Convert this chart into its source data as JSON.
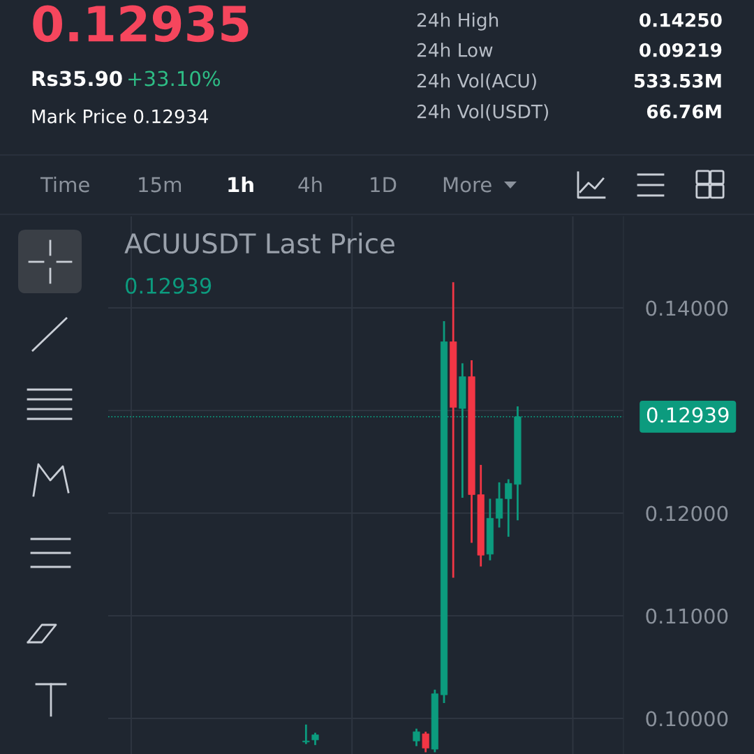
{
  "chart_data": {
    "type": "candlestick",
    "title": "ACUUSDT Last Price",
    "categories": [
      null,
      null,
      null,
      null,
      null,
      null,
      null,
      null,
      null,
      null,
      null,
      null,
      null,
      null,
      null,
      null,
      null,
      null,
      null,
      null,
      null,
      null,
      null,
      null,
      null,
      null,
      null,
      null,
      null,
      null,
      null,
      null,
      null,
      null,
      null,
      null,
      null,
      null,
      null,
      null,
      null,
      null,
      null,
      null,
      null,
      null,
      null,
      null,
      null,
      null,
      null,
      null,
      null,
      null,
      null,
      null
    ],
    "ohlc": [
      null,
      null,
      null,
      null,
      null,
      null,
      null,
      null,
      null,
      null,
      null,
      null,
      null,
      null,
      null,
      null,
      null,
      null,
      null,
      null,
      null,
      [
        0.0977,
        0.0994,
        0.0975,
        0.0978
      ],
      [
        0.0979,
        0.0986,
        0.0974,
        0.0984
      ],
      null,
      null,
      null,
      null,
      null,
      null,
      null,
      null,
      null,
      null,
      [
        0.0978,
        0.099,
        0.0973,
        0.0987
      ],
      [
        0.0985,
        0.0987,
        0.0967,
        0.0971
      ],
      [
        0.097,
        0.1028,
        0.0967,
        0.1024
      ],
      [
        0.1023,
        0.1387,
        0.1015,
        0.1367
      ],
      [
        0.1367,
        0.1425,
        0.1137,
        0.1303
      ],
      [
        0.1302,
        0.1346,
        0.1215,
        0.1333
      ],
      [
        0.1333,
        0.1349,
        0.1171,
        0.1218
      ],
      [
        0.1218,
        0.1247,
        0.1148,
        0.1159
      ],
      [
        0.116,
        0.1214,
        0.1154,
        0.1195
      ],
      [
        0.1195,
        0.123,
        0.1186,
        0.1214
      ],
      [
        0.1214,
        0.1233,
        0.1177,
        0.1229
      ],
      [
        0.1228,
        0.1304,
        0.1193,
        0.12939
      ],
      null,
      null,
      null,
      null,
      null,
      null,
      null,
      null,
      null,
      null,
      null
    ],
    "colors": [
      null,
      null,
      null,
      null,
      null,
      null,
      null,
      null,
      null,
      null,
      null,
      null,
      null,
      null,
      null,
      null,
      null,
      null,
      null,
      null,
      null,
      "#0c9b7e",
      "#0c9b7e",
      null,
      null,
      null,
      null,
      null,
      null,
      null,
      null,
      null,
      null,
      "#0c9b7e",
      "#f23645",
      "#0c9b7e",
      "#0c9b7e",
      "#f23645",
      "#0c9b7e",
      "#f23645",
      "#f23645",
      "#0c9b7e",
      "#0c9b7e",
      "#0c9b7e",
      "#0c9b7e",
      null,
      null,
      null,
      null,
      null,
      null,
      null,
      null,
      null,
      null,
      null
    ],
    "ylim": [
      0.09653,
      0.14891
    ],
    "yticks": [
      {
        "value": 0.1,
        "label": "0.10000"
      },
      {
        "value": 0.11,
        "label": "0.11000"
      },
      {
        "value": 0.12,
        "label": "0.12000"
      },
      {
        "value": 0.13,
        "label": null
      },
      {
        "value": 0.14,
        "label": "0.14000"
      }
    ],
    "ref_lines": [
      {
        "axis": "y",
        "value": 0.12939,
        "label": "0.12939",
        "color": "#0c9b7e",
        "line_style": "dotted"
      }
    ],
    "grid": true,
    "tick_labels": "y",
    "legend": false,
    "annotations": [
      "0.12939",
      "0.12935",
      "Rs35.90",
      "+33.10%",
      "Mark Price 0.12934",
      "24h High",
      "0.14250",
      "24h Low",
      "0.09219",
      "24h Vol(ACU)",
      "533.53M",
      "24h Vol(USDT)",
      "66.76M",
      "Time",
      "15m",
      "1h",
      "4h",
      "1D",
      "More"
    ]
  }
}
